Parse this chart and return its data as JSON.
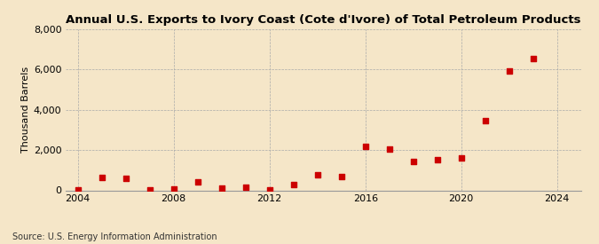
{
  "title": "Annual U.S. Exports to Ivory Coast (Cote d'Ivore) of Total Petroleum Products",
  "ylabel": "Thousand Barrels",
  "source": "Source: U.S. Energy Information Administration",
  "background_color": "#f5e6c8",
  "years": [
    2004,
    2005,
    2006,
    2007,
    2008,
    2009,
    2010,
    2011,
    2012,
    2013,
    2014,
    2015,
    2016,
    2017,
    2018,
    2019,
    2020,
    2021,
    2022,
    2023
  ],
  "values": [
    10,
    620,
    580,
    40,
    80,
    430,
    100,
    170,
    20,
    280,
    750,
    680,
    2200,
    2050,
    1450,
    1520,
    1600,
    3450,
    5950,
    6550
  ],
  "marker_color": "#cc0000",
  "ylim": [
    0,
    8000
  ],
  "yticks": [
    0,
    2000,
    4000,
    6000,
    8000
  ],
  "xlim": [
    2003.5,
    2025.0
  ],
  "xticks": [
    2004,
    2008,
    2012,
    2016,
    2020,
    2024
  ],
  "title_fontsize": 9.5,
  "axis_fontsize": 8,
  "source_fontsize": 7
}
